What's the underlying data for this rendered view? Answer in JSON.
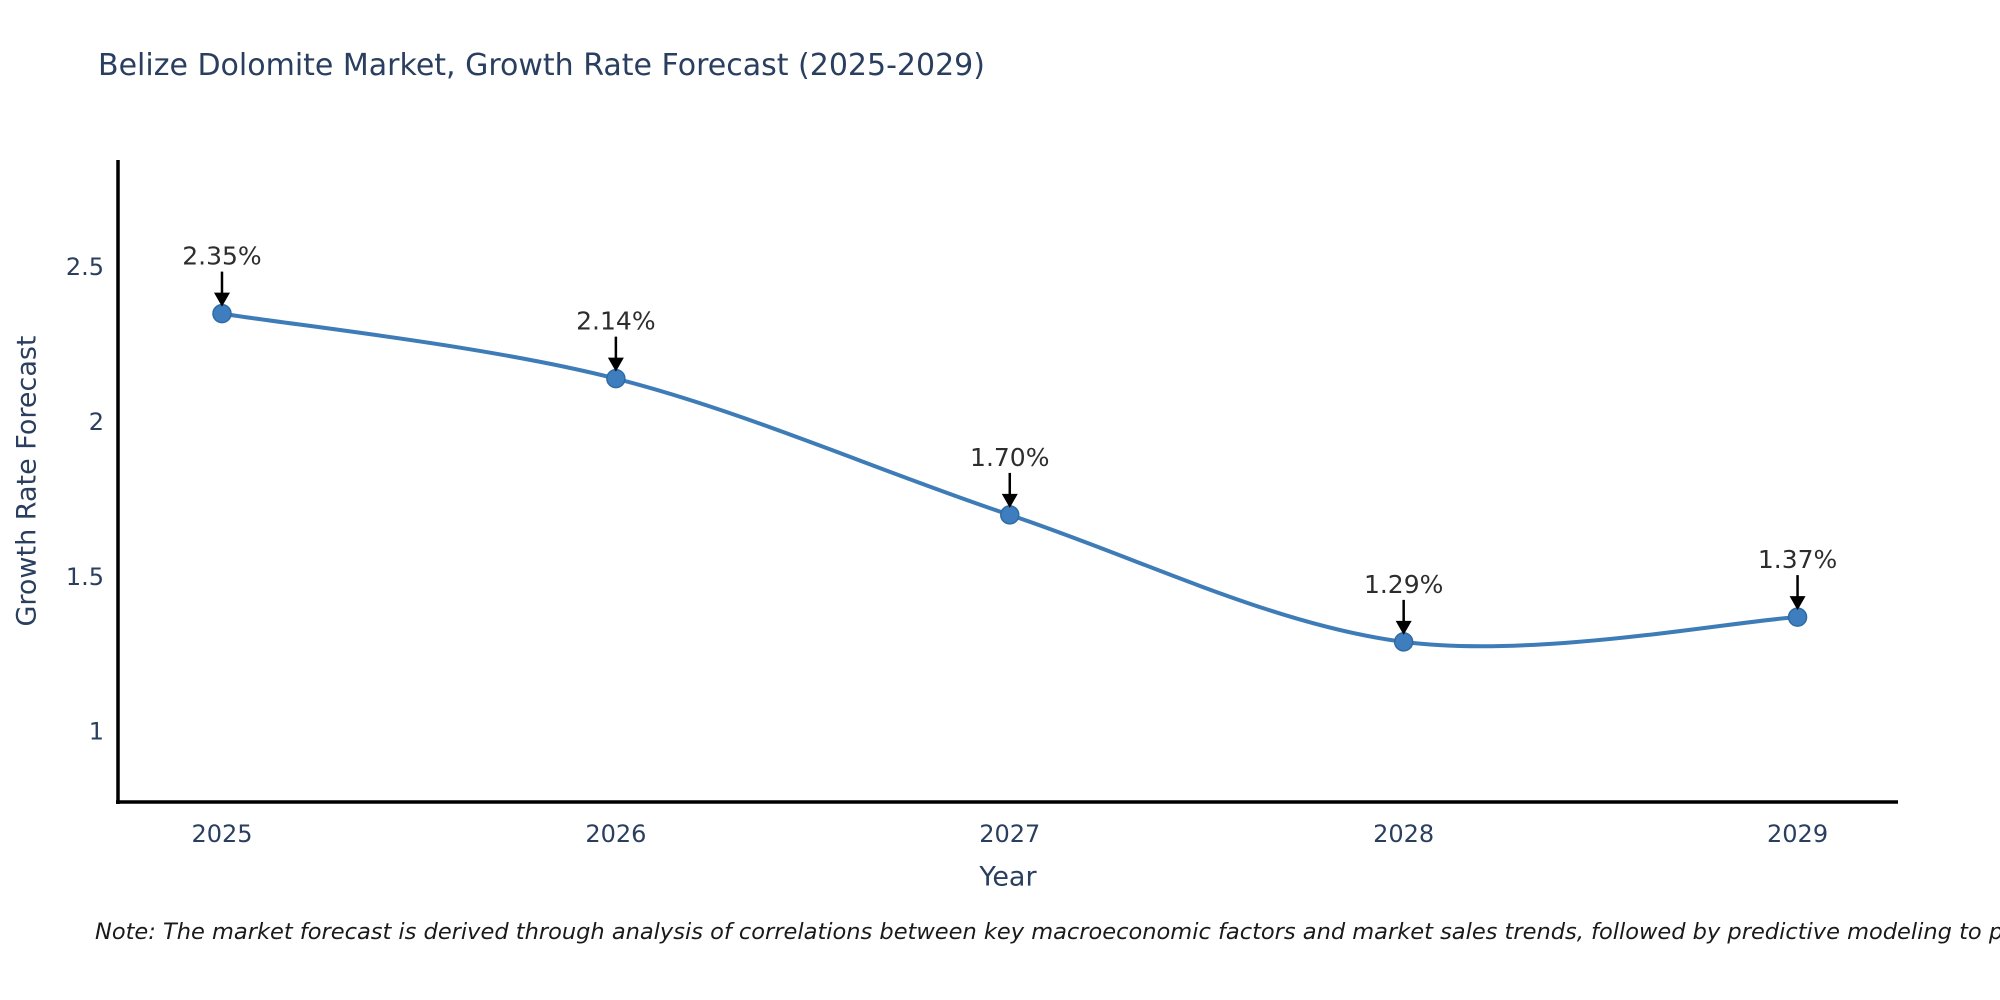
{
  "title": "Belize Dolomite Market, Growth Rate Forecast (2025-2029)",
  "note": "Note: The market forecast is derived through analysis of correlations between key macroeconomic factors and market sales trends, followed by predictive modeling to project future sales",
  "chart_data": {
    "type": "line",
    "title": "Belize Dolomite Market, Growth Rate Forecast (2025-2029)",
    "xlabel": "Year",
    "ylabel": "Growth Rate Forecast",
    "x": [
      2025,
      2026,
      2027,
      2028,
      2029
    ],
    "values": [
      2.35,
      2.14,
      1.7,
      1.29,
      1.37
    ],
    "point_labels": [
      "2.35%",
      "2.14%",
      "1.70%",
      "1.29%",
      "1.37%"
    ],
    "x_tick_values": [
      2025,
      2026,
      2027,
      2028,
      2029
    ],
    "x_tick_labels": [
      "2025",
      "2026",
      "2027",
      "2028",
      "2029"
    ],
    "y_tick_values": [
      2.5,
      2,
      1.5,
      1
    ],
    "y_tick_labels": [
      "2.5",
      "2",
      "1.5",
      "1"
    ],
    "xlim": [
      2024.736,
      2029.255
    ],
    "ylim": [
      0.773,
      2.846
    ],
    "line_shape": "spline",
    "grid": false,
    "legend": "none",
    "colors": {
      "line": "#3E7CB8",
      "marker_fill": "#3E7EBE",
      "marker_edge": "#2F6BA3",
      "axis_line": "#000000",
      "tick_text": "#2a3f5f",
      "title_text": "#2a3f5f",
      "point_label_text": "#2d2d2d",
      "arrow": "#000000",
      "background": "#ffffff"
    }
  }
}
